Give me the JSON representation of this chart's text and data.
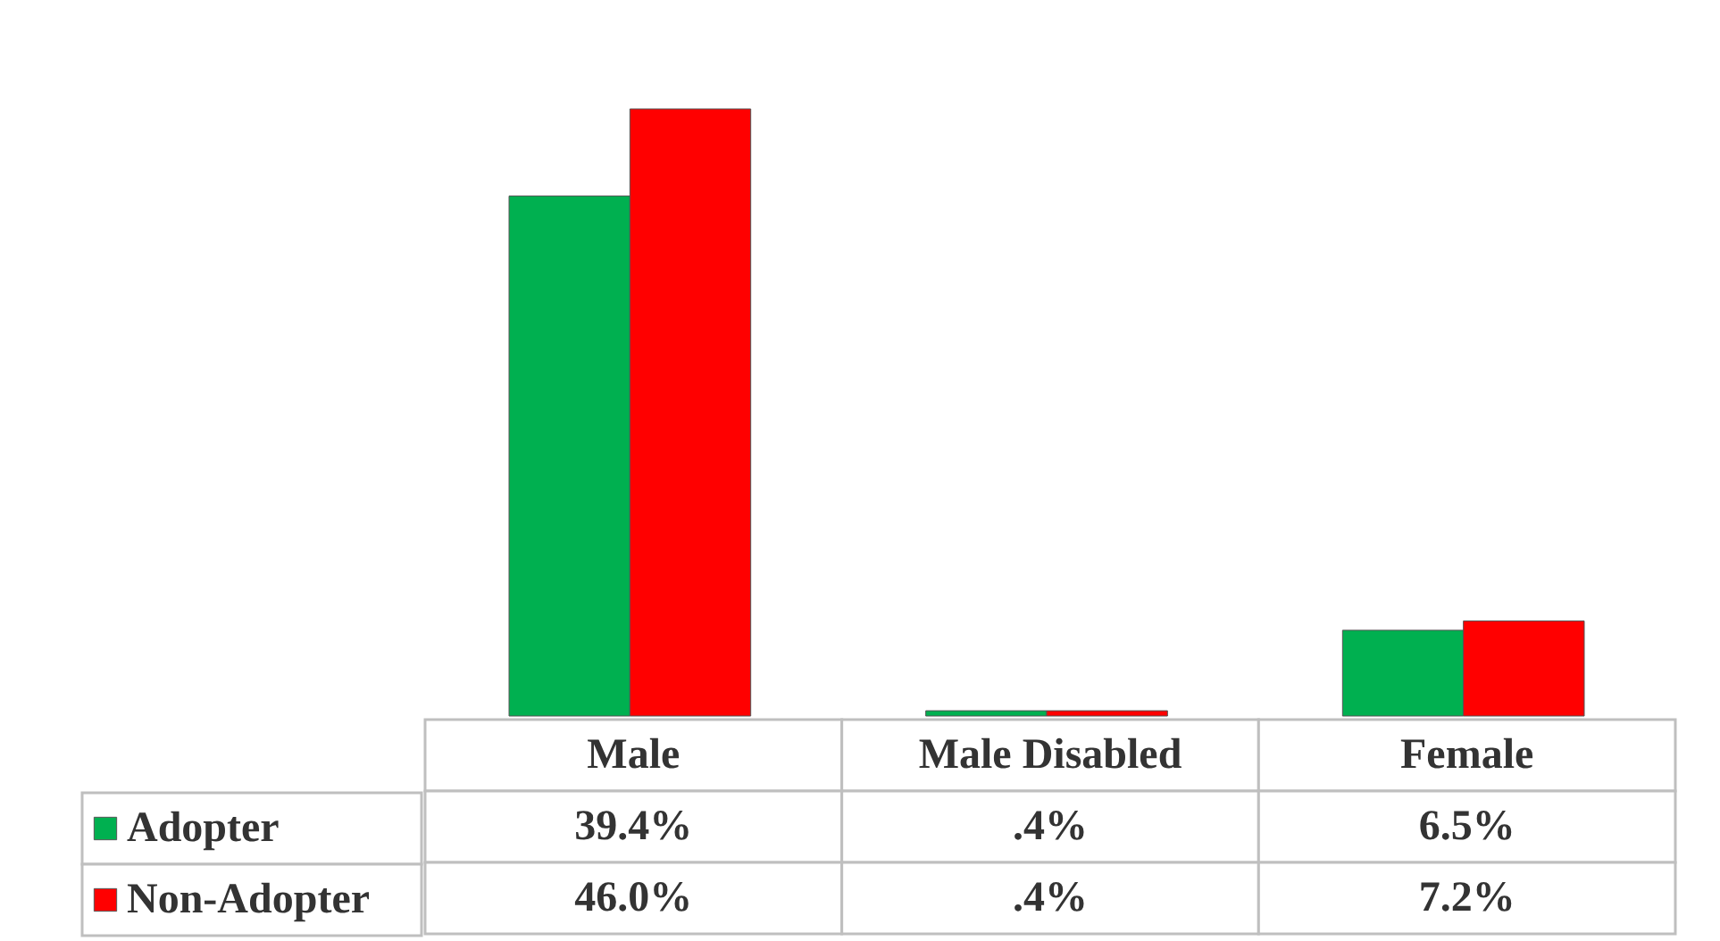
{
  "chart_data": {
    "type": "bar",
    "categories": [
      "Male",
      "Male Disabled",
      "Female"
    ],
    "series": [
      {
        "name": "Adopter",
        "color": "#00b050",
        "values": [
          39.4,
          0.4,
          6.5
        ],
        "value_labels": [
          "39.4%",
          ".4%",
          "6.5%"
        ]
      },
      {
        "name": "Non-Adopter",
        "color": "#ff0000",
        "values": [
          46.0,
          0.4,
          7.2
        ],
        "value_labels": [
          "46.0%",
          ".4%",
          "7.2%"
        ]
      }
    ],
    "legend": "bottom left"
  }
}
